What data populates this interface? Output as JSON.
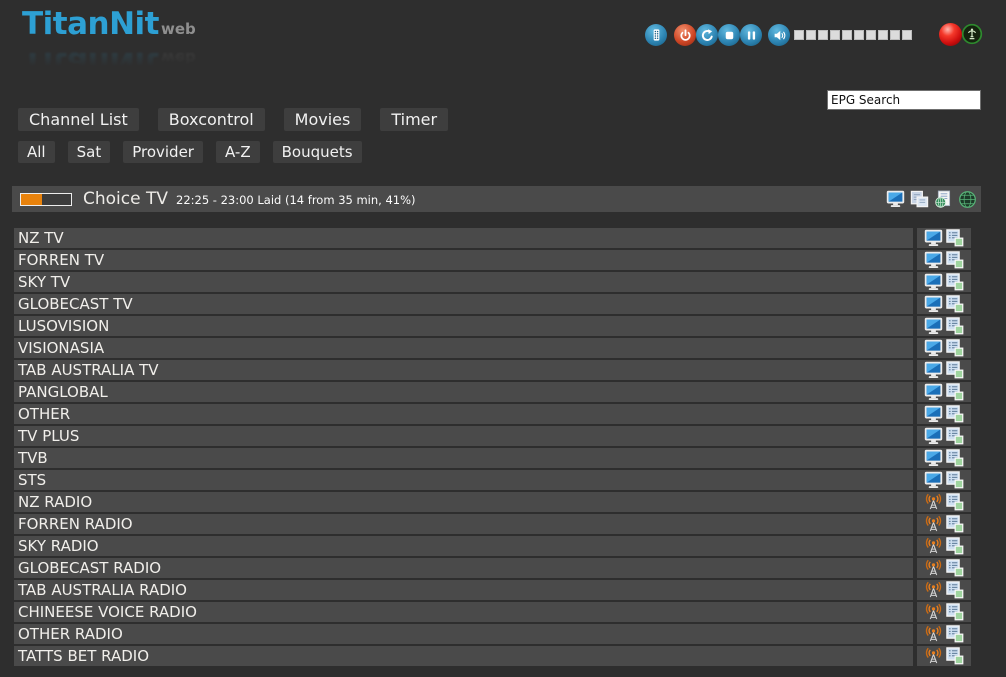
{
  "app": {
    "logo_main": "TitanNit",
    "logo_sub": "web"
  },
  "colors": {
    "page_bg": "#2e2e2e",
    "row_bg": "#4a4a4a",
    "button_bg": "#3e3e3e",
    "accent_blue": "#2da0d4",
    "accent_orange": "#e8820c",
    "record_red": "#d41414",
    "signal_green": "#2e8b2e"
  },
  "toolbar": {
    "buttons": [
      {
        "name": "remote-control",
        "icon": "remote",
        "color": "blue"
      },
      {
        "name": "power",
        "icon": "power",
        "color": "red"
      },
      {
        "name": "refresh",
        "icon": "refresh",
        "color": "blue"
      },
      {
        "name": "stop",
        "icon": "stop",
        "color": "blue"
      },
      {
        "name": "pause",
        "icon": "pause",
        "color": "blue"
      }
    ],
    "volume": {
      "name": "volume",
      "icon": "speaker",
      "segments": 10
    },
    "indicators": [
      {
        "name": "record-indicator",
        "shape": "red-ball"
      },
      {
        "name": "signal-indicator",
        "shape": "green-antenna-ring"
      }
    ]
  },
  "search": {
    "value": "EPG Search"
  },
  "nav_primary": [
    {
      "label": "Channel List"
    },
    {
      "label": "Boxcontrol"
    },
    {
      "label": "Movies"
    },
    {
      "label": "Timer"
    }
  ],
  "nav_filters": [
    {
      "label": "All"
    },
    {
      "label": "Sat"
    },
    {
      "label": "Provider"
    },
    {
      "label": "A-Z"
    },
    {
      "label": "Bouquets"
    }
  ],
  "now_playing": {
    "channel": "Choice TV",
    "details": "22:25 - 23:00 Laid (14 from 35 min, 41%)",
    "progress_percent": 41,
    "actions": [
      {
        "name": "tv-screenshot",
        "icon": "monitor"
      },
      {
        "name": "epg-list",
        "icon": "pages"
      },
      {
        "name": "epg-page",
        "icon": "doc-globe"
      },
      {
        "name": "web",
        "icon": "globe"
      }
    ]
  },
  "channels": [
    {
      "name": "NZ TV",
      "type": "tv"
    },
    {
      "name": "FORREN TV",
      "type": "tv"
    },
    {
      "name": "SKY TV",
      "type": "tv"
    },
    {
      "name": "GLOBECAST TV",
      "type": "tv"
    },
    {
      "name": "LUSOVISION",
      "type": "tv"
    },
    {
      "name": "VISIONASIA",
      "type": "tv"
    },
    {
      "name": "TAB AUSTRALIA TV",
      "type": "tv"
    },
    {
      "name": "PANGLOBAL",
      "type": "tv"
    },
    {
      "name": "OTHER",
      "type": "tv"
    },
    {
      "name": "TV PLUS",
      "type": "tv"
    },
    {
      "name": "TVB",
      "type": "tv"
    },
    {
      "name": "STS",
      "type": "tv"
    },
    {
      "name": "NZ RADIO",
      "type": "radio"
    },
    {
      "name": "FORREN RADIO",
      "type": "radio"
    },
    {
      "name": "SKY RADIO",
      "type": "radio"
    },
    {
      "name": "GLOBECAST RADIO",
      "type": "radio"
    },
    {
      "name": "TAB AUSTRALIA RADIO",
      "type": "radio"
    },
    {
      "name": "CHINEESE VOICE RADIO",
      "type": "radio"
    },
    {
      "name": "OTHER RADIO",
      "type": "radio"
    },
    {
      "name": "TATTS BET RADIO",
      "type": "radio"
    }
  ]
}
